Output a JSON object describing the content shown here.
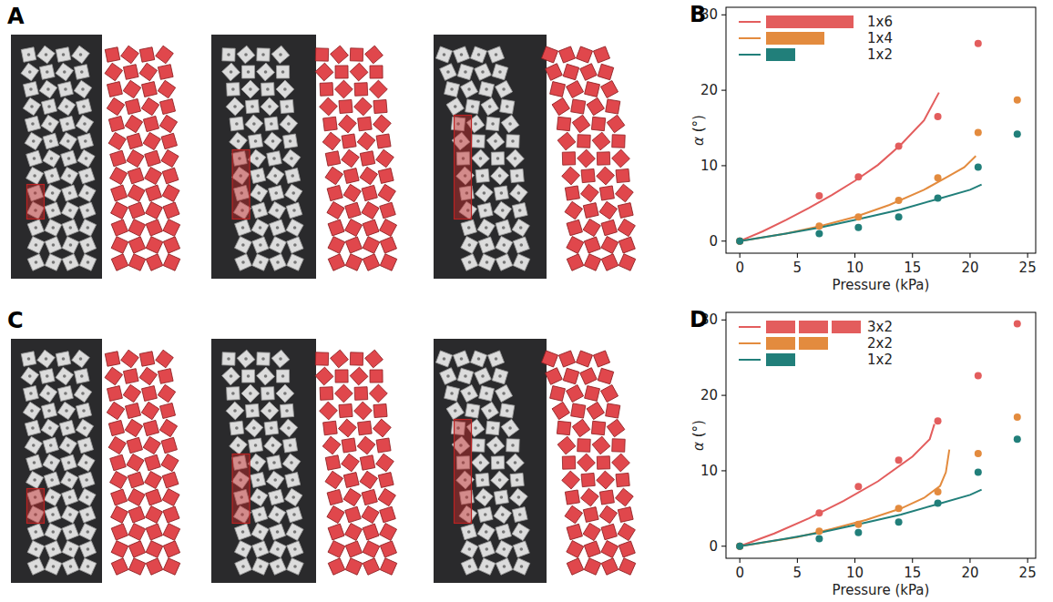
{
  "images": [
    {
      "panel": "A"
    },
    {
      "panel": "C"
    }
  ],
  "chart_data": [
    {
      "panel": "B",
      "type": "line",
      "x_label": "Pressure (kPa)",
      "y_label": "α (°)",
      "xlim": [
        -1.2,
        25.7
      ],
      "ylim": [
        -1.6,
        31
      ],
      "xticks": [
        0,
        5,
        10,
        15,
        20,
        25
      ],
      "yticks": [
        0,
        10,
        20,
        30
      ],
      "legend": "upper left",
      "series": [
        {
          "name": "1x6",
          "color": "#e35d5d",
          "type": "line",
          "x": [
            0,
            2,
            4,
            6,
            8,
            10,
            12,
            14,
            16,
            17.3
          ],
          "values": [
            0,
            1.3,
            2.8,
            4.4,
            6.1,
            8.0,
            10.1,
            12.8,
            16.0,
            19.7
          ]
        },
        {
          "name": "1x4",
          "color": "#e38b3e",
          "type": "line",
          "x": [
            0,
            4,
            7,
            10,
            13,
            16,
            18,
            19.5,
            20.5
          ],
          "values": [
            0,
            1.0,
            2.0,
            3.2,
            4.8,
            6.8,
            8.5,
            9.8,
            11.3
          ]
        },
        {
          "name": "1x2",
          "color": "#217f7a",
          "type": "line",
          "x": [
            0,
            4,
            7,
            10,
            14,
            17,
            20,
            21
          ],
          "values": [
            0,
            1.0,
            1.8,
            2.8,
            4.2,
            5.5,
            6.8,
            7.5
          ]
        },
        {
          "color": "#e35d5d",
          "type": "scatter",
          "marker": "circle",
          "x": [
            0,
            6.9,
            10.3,
            13.8,
            17.2,
            20.7
          ],
          "values": [
            0,
            6.0,
            8.5,
            12.6,
            16.5,
            26.2
          ]
        },
        {
          "color": "#e38b3e",
          "type": "scatter",
          "marker": "circle",
          "x": [
            0,
            6.9,
            10.3,
            13.8,
            17.2,
            20.7,
            24.1
          ],
          "values": [
            0,
            2.0,
            3.2,
            5.4,
            8.4,
            14.4,
            18.7
          ]
        },
        {
          "color": "#217f7a",
          "type": "scatter",
          "marker": "circle",
          "x": [
            0,
            6.9,
            10.3,
            13.8,
            17.2,
            20.7,
            24.1
          ],
          "values": [
            0,
            1.0,
            1.8,
            3.2,
            5.7,
            9.8,
            14.2
          ]
        }
      ]
    },
    {
      "panel": "D",
      "type": "line",
      "x_label": "Pressure (kPa)",
      "y_label": "α (°)",
      "xlim": [
        -1.2,
        25.7
      ],
      "ylim": [
        -1.6,
        31
      ],
      "xticks": [
        0,
        5,
        10,
        15,
        20,
        25
      ],
      "yticks": [
        0,
        10,
        20,
        30
      ],
      "legend": "upper left",
      "series": [
        {
          "name": "3x2",
          "color": "#e35d5d",
          "type": "line",
          "x": [
            0,
            3,
            6,
            9,
            12,
            15,
            16.5,
            16.9
          ],
          "values": [
            0,
            1.7,
            3.7,
            6.0,
            8.6,
            11.9,
            14.2,
            16.2
          ]
        },
        {
          "name": "2x2",
          "color": "#e38b3e",
          "type": "line",
          "x": [
            0,
            5,
            8,
            11,
            14,
            16,
            17.4,
            17.9,
            18.2
          ],
          "values": [
            0,
            1.2,
            2.3,
            3.5,
            5.0,
            6.4,
            8.0,
            9.8,
            12.8
          ]
        },
        {
          "name": "1x2",
          "color": "#217f7a",
          "type": "line",
          "x": [
            0,
            4,
            7,
            10,
            14,
            17,
            20,
            21
          ],
          "values": [
            0,
            1.0,
            1.8,
            2.8,
            4.2,
            5.5,
            6.8,
            7.5
          ]
        },
        {
          "color": "#e35d5d",
          "type": "scatter",
          "marker": "circle",
          "x": [
            0,
            6.9,
            10.3,
            13.8,
            17.2,
            20.7,
            24.1
          ],
          "values": [
            0,
            4.4,
            7.9,
            11.4,
            16.6,
            22.6,
            29.5
          ]
        },
        {
          "color": "#e38b3e",
          "type": "scatter",
          "marker": "circle",
          "x": [
            0,
            6.9,
            10.3,
            13.8,
            17.2,
            20.7,
            24.1
          ],
          "values": [
            0,
            2.0,
            2.9,
            5.0,
            7.2,
            12.3,
            17.1
          ]
        },
        {
          "color": "#217f7a",
          "type": "scatter",
          "marker": "circle",
          "x": [
            0,
            6.9,
            10.3,
            13.8,
            17.2,
            20.7,
            24.1
          ],
          "values": [
            0,
            1.0,
            1.8,
            3.2,
            5.7,
            9.8,
            14.2
          ]
        }
      ]
    }
  ]
}
